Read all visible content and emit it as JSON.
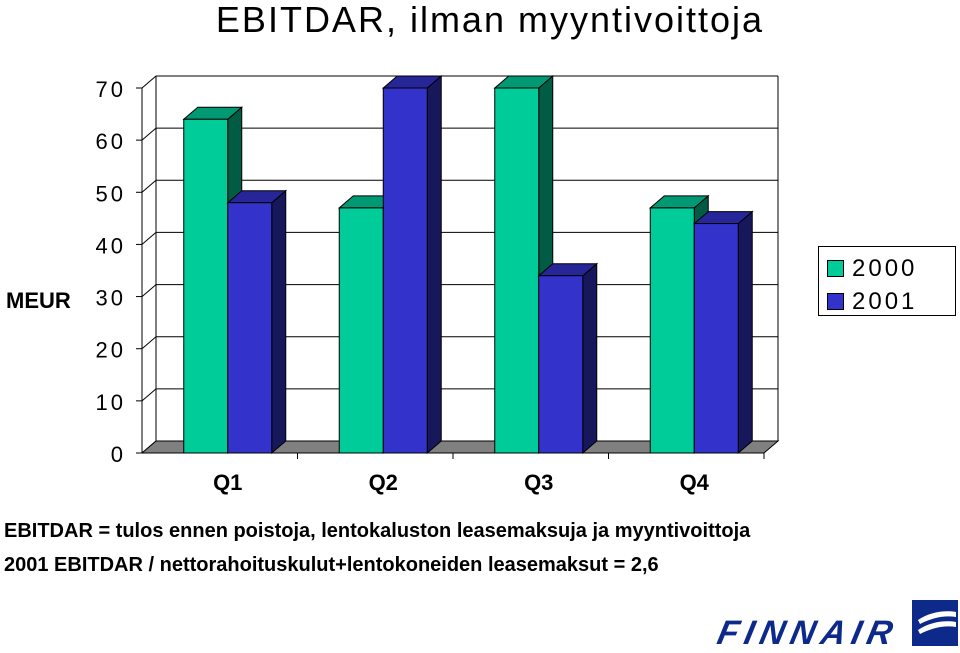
{
  "title": "EBITDAR, ilman myyntivoittoja",
  "colors": {
    "series_2000": "#00cc99",
    "series_2001": "#3333cc",
    "floor": "#808080",
    "logo": "#0d2a8a"
  },
  "legend": {
    "items": [
      "2000",
      "2001"
    ]
  },
  "notes": {
    "line1": "EBITDAR  =  tulos  ennen  poistoja,  lentokaluston  leasemaksuja  ja  myyntivoittoja",
    "line2": "2001      EBITDAR / nettorahoituskulut+lentokoneiden leasemaksut = 2,6"
  },
  "logo": {
    "text": "FINNAIR",
    "icon": "finnair-logo-icon"
  },
  "chart_data": {
    "type": "bar",
    "title": "EBITDAR, ilman myyntivoittoja",
    "xlabel": "",
    "ylabel": "MEUR",
    "categories": [
      "Q1",
      "Q2",
      "Q3",
      "Q4"
    ],
    "series": [
      {
        "name": "2000",
        "values": [
          64,
          47,
          70,
          47
        ]
      },
      {
        "name": "2001",
        "values": [
          48,
          70,
          34,
          44
        ]
      }
    ],
    "ylim": [
      0,
      70
    ],
    "yticks": [
      0,
      10,
      20,
      30,
      40,
      50,
      60,
      70
    ],
    "grid": true,
    "legend_position": "right",
    "style": "3d"
  }
}
